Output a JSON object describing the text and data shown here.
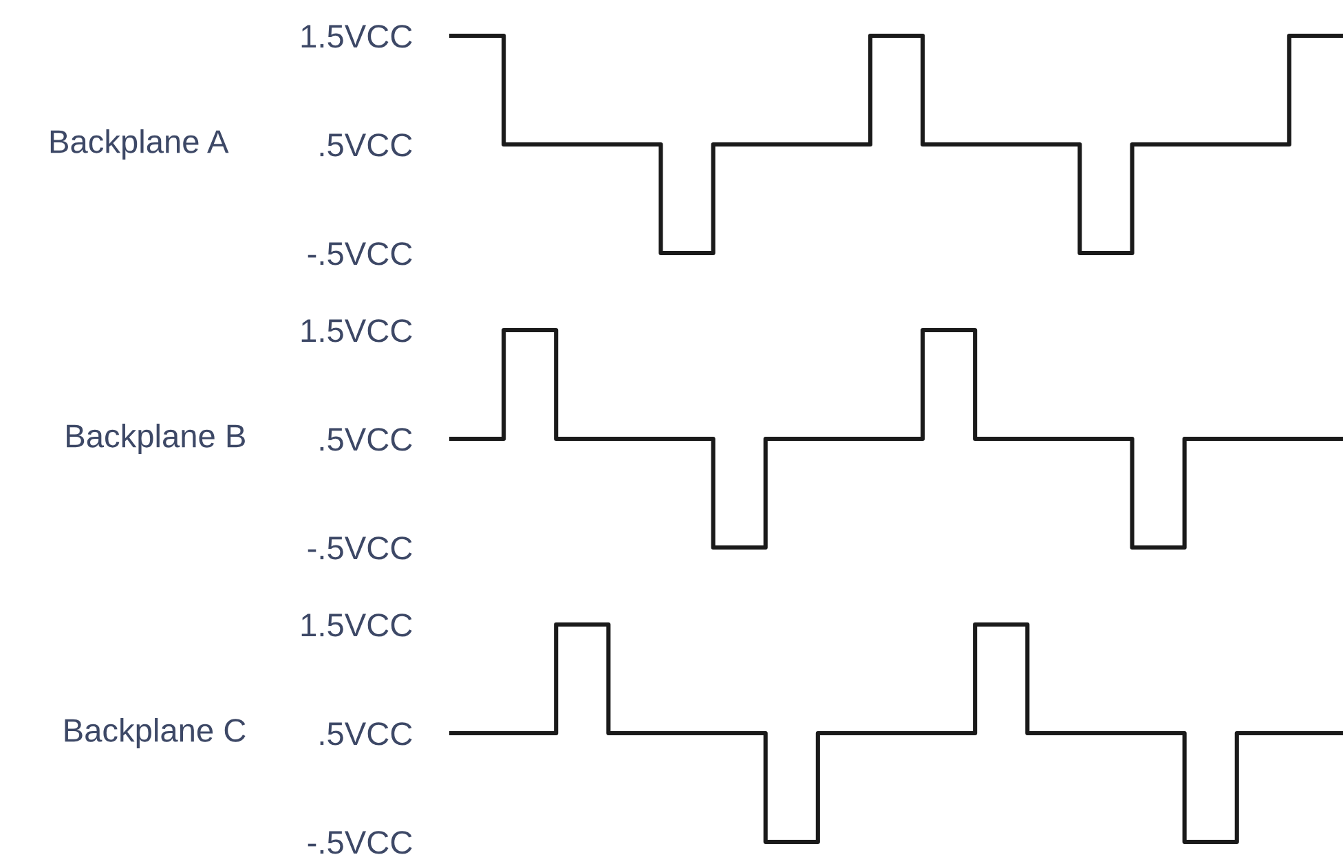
{
  "chart_data": [
    {
      "type": "step",
      "ylabel": "Backplane A",
      "categories": [
        null,
        null,
        null,
        null,
        null,
        null,
        null,
        null,
        null,
        null,
        null,
        null,
        null,
        null,
        null,
        null,
        null,
        null
      ],
      "series": [
        {
          "color": "#1a1a1a",
          "values": [
            1.5,
            0.5,
            0.5,
            0.5,
            -0.5,
            0.5,
            0.5,
            0.5,
            1.5,
            0.5,
            0.5,
            0.5,
            -0.5,
            0.5,
            0.5,
            0.5,
            1.5,
            1.5
          ]
        }
      ],
      "ylim": [
        -0.5,
        1.5
      ],
      "yticks": [
        {
          "value": 1.5,
          "label": "1.5VCC"
        },
        {
          "value": 0.5,
          "label": ".5VCC"
        },
        {
          "value": -0.5,
          "label": "-.5VCC"
        }
      ],
      "tick_labels": "y",
      "grid": false
    },
    {
      "type": "step",
      "ylabel": "Backplane B",
      "categories": [
        null,
        null,
        null,
        null,
        null,
        null,
        null,
        null,
        null,
        null,
        null,
        null,
        null,
        null,
        null,
        null,
        null,
        null
      ],
      "series": [
        {
          "color": "#1a1a1a",
          "values": [
            0.5,
            1.5,
            0.5,
            0.5,
            0.5,
            -0.5,
            0.5,
            0.5,
            0.5,
            1.5,
            0.5,
            0.5,
            0.5,
            -0.5,
            0.5,
            0.5,
            0.5,
            0.5
          ]
        }
      ],
      "ylim": [
        -0.5,
        1.5
      ],
      "yticks": [
        {
          "value": 1.5,
          "label": "1.5VCC"
        },
        {
          "value": 0.5,
          "label": ".5VCC"
        },
        {
          "value": -0.5,
          "label": "-.5VCC"
        }
      ],
      "tick_labels": "y",
      "grid": false
    },
    {
      "type": "step",
      "ylabel": "Backplane C",
      "categories": [
        null,
        null,
        null,
        null,
        null,
        null,
        null,
        null,
        null,
        null,
        null,
        null,
        null,
        null,
        null,
        null,
        null,
        null
      ],
      "series": [
        {
          "color": "#1a1a1a",
          "values": [
            0.5,
            0.5,
            1.5,
            0.5,
            0.5,
            0.5,
            -0.5,
            0.5,
            0.5,
            0.5,
            1.5,
            0.5,
            0.5,
            0.5,
            -0.5,
            0.5,
            0.5,
            0.5
          ]
        }
      ],
      "ylim": [
        -0.5,
        1.5
      ],
      "yticks": [
        {
          "value": 1.5,
          "label": "1.5VCC"
        },
        {
          "value": 0.5,
          "label": ".5VCC"
        },
        {
          "value": -0.5,
          "label": "-.5VCC"
        }
      ],
      "tick_labels": "y",
      "grid": false
    }
  ]
}
